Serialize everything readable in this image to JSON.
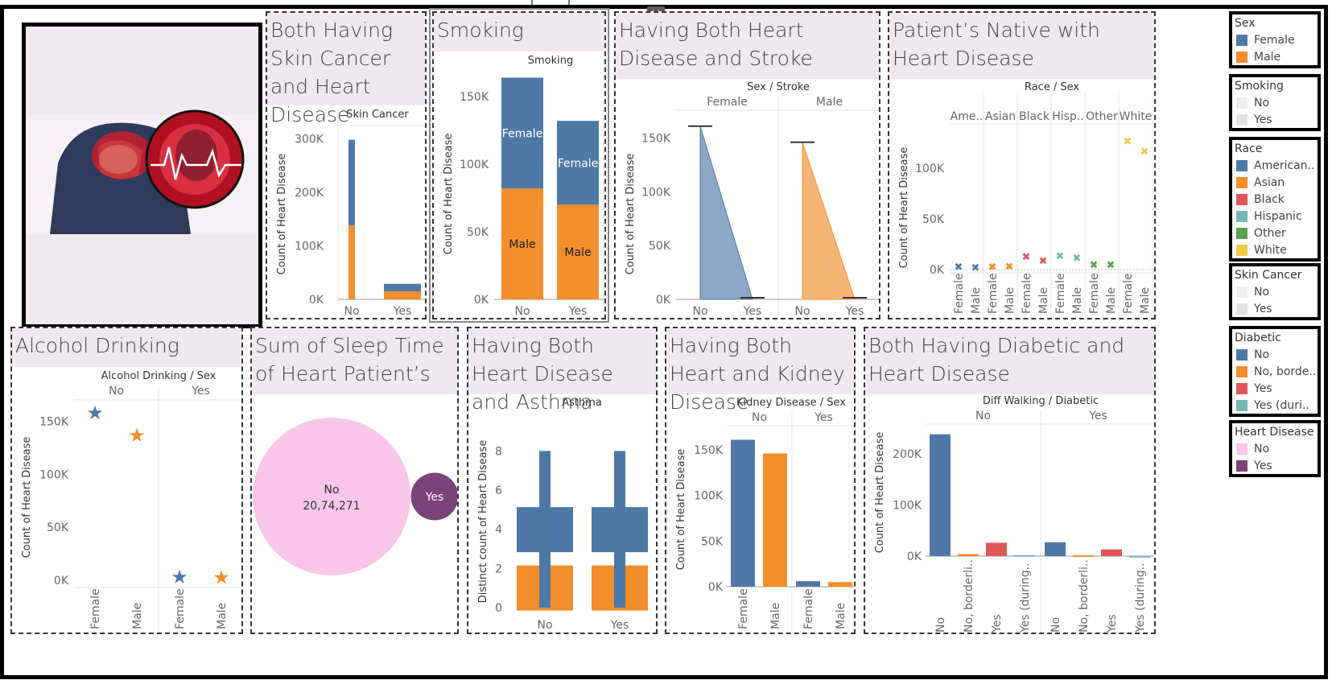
{
  "image_alt": "",
  "panels": {
    "skin": {
      "title": "Both Having Skin Cancer and Heart Disease"
    },
    "smoking": {
      "title": "Smoking"
    },
    "stroke": {
      "title": "Having Both Heart Disease and Stroke"
    },
    "race": {
      "title": "Patient’s Native with Heart Disease"
    },
    "alcohol": {
      "title": "Alcohol Drinking"
    },
    "sleep": {
      "title": "Sum of Sleep Time of Heart Patient’s"
    },
    "asthma": {
      "title": "Having Both Heart Disease and Asthma"
    },
    "kidney": {
      "title": "Having Both Heart and Kidney Disease"
    },
    "diabetic": {
      "title": "Both Having Diabetic and Heart Disease"
    }
  },
  "legends": [
    {
      "title": "Sex",
      "items": [
        {
          "label": "Female",
          "color": "#4e79a7"
        },
        {
          "label": "Male",
          "color": "#f28e2b"
        }
      ]
    },
    {
      "title": "Smoking",
      "items": [
        {
          "label": "No",
          "color": "#eeeeee"
        },
        {
          "label": "Yes",
          "color": "#e2e2e2"
        }
      ]
    },
    {
      "title": "Race",
      "items": [
        {
          "label": "American..",
          "color": "#4e79a7"
        },
        {
          "label": "Asian",
          "color": "#f28e2b"
        },
        {
          "label": "Black",
          "color": "#e15759"
        },
        {
          "label": "Hispanic",
          "color": "#76b7b2"
        },
        {
          "label": "Other",
          "color": "#59a14f"
        },
        {
          "label": "White",
          "color": "#edc948"
        }
      ]
    },
    {
      "title": "Skin Cancer",
      "items": [
        {
          "label": "No",
          "color": "#eeeeee"
        },
        {
          "label": "Yes",
          "color": "#e2e2e2"
        }
      ]
    },
    {
      "title": "Diabetic",
      "items": [
        {
          "label": "No",
          "color": "#4e79a7"
        },
        {
          "label": "No, borde..",
          "color": "#f28e2b"
        },
        {
          "label": "Yes",
          "color": "#e15759"
        },
        {
          "label": "Yes (duri..",
          "color": "#76b7b2"
        }
      ]
    },
    {
      "title": "Heart Disease",
      "items": [
        {
          "label": "No",
          "color": "#f7c6e8"
        },
        {
          "label": "Yes",
          "color": "#7b4379"
        }
      ]
    }
  ],
  "chart_data": [
    {
      "id": "skin",
      "type": "bar",
      "stacked": true,
      "header": "Skin Cancer",
      "ylabel": "Count of Heart Disease",
      "categories": [
        "No",
        "Yes"
      ],
      "ylim": [
        0,
        320000
      ],
      "yticks": [
        0,
        100000,
        200000,
        300000
      ],
      "ytick_labels": [
        "0K",
        "100K",
        "200K",
        "300K"
      ],
      "series": [
        {
          "name": "Male",
          "color": "#f28e2b",
          "values": [
            138000,
            15000
          ]
        },
        {
          "name": "Female",
          "color": "#4e79a7",
          "values": [
            160000,
            14000
          ]
        }
      ]
    },
    {
      "id": "smoking",
      "type": "bar",
      "stacked": true,
      "header": "Smoking",
      "ylabel": "Count of Heart Disease",
      "categories": [
        "No",
        "Yes"
      ],
      "ylim": [
        0,
        172000
      ],
      "yticks": [
        0,
        50000,
        100000,
        150000
      ],
      "ytick_labels": [
        "0K",
        "50K",
        "100K",
        "150K"
      ],
      "series": [
        {
          "name": "Male",
          "color": "#f28e2b",
          "values": [
            82000,
            70000
          ],
          "labels": [
            "Male",
            "Male"
          ]
        },
        {
          "name": "Female",
          "color": "#4e79a7",
          "values": [
            82000,
            62000
          ],
          "labels": [
            "Female",
            "Female"
          ]
        }
      ]
    },
    {
      "id": "stroke",
      "type": "area",
      "header": "Sex / Stroke",
      "groups": [
        "Female",
        "Male"
      ],
      "ylabel": "Count of Heart Disease",
      "categories": [
        "No",
        "Yes"
      ],
      "ylim": [
        0,
        172000
      ],
      "yticks": [
        0,
        50000,
        100000,
        150000
      ],
      "ytick_labels": [
        "0K",
        "50K",
        "100K",
        "150K"
      ],
      "series": [
        {
          "name": "Female",
          "color": "#4e79a7",
          "values": [
            161000,
            0
          ]
        },
        {
          "name": "Male",
          "color": "#f28e2b",
          "values": [
            146000,
            0
          ]
        }
      ]
    },
    {
      "id": "race",
      "type": "scatter",
      "header": "Race / Sex",
      "ylabel": "Count of Heart Disease",
      "groups": [
        "Ame..",
        "Asian",
        "Black",
        "Hisp..",
        "Other",
        "White"
      ],
      "group_colors": [
        "#4e79a7",
        "#f28e2b",
        "#e15759",
        "#76b7b2",
        "#59a14f",
        "#edc948"
      ],
      "categories": [
        "Female",
        "Male"
      ],
      "ylim": [
        0,
        142000
      ],
      "yticks": [
        0,
        50000,
        100000
      ],
      "ytick_labels": [
        "0K",
        "50K",
        "100K"
      ],
      "values": [
        [
          3000,
          2500
        ],
        [
          3000,
          3500
        ],
        [
          13000,
          9000
        ],
        [
          14000,
          12000
        ],
        [
          5000,
          5000
        ],
        [
          127000,
          117000
        ]
      ]
    },
    {
      "id": "alcohol",
      "type": "scatter",
      "header": "Alcohol Drinking / Sex",
      "groups": [
        "No",
        "Yes"
      ],
      "ylabel": "Count of Heart Disease",
      "categories": [
        "Female",
        "Male"
      ],
      "ylim": [
        0,
        168000
      ],
      "yticks": [
        0,
        50000,
        100000,
        150000
      ],
      "ytick_labels": [
        "0K",
        "50K",
        "100K",
        "150K"
      ],
      "values": [
        [
          158000,
          137000
        ],
        [
          3000,
          2500
        ]
      ],
      "colors": [
        "#4e79a7",
        "#f28e2b"
      ]
    },
    {
      "id": "sleep",
      "type": "pie",
      "categories": [
        "No",
        "Yes"
      ],
      "values": [
        2074271,
        150000
      ],
      "value_labels": [
        "20,74,271",
        ""
      ],
      "colors": [
        "#f7c6e8",
        "#7b4379"
      ]
    },
    {
      "id": "asthma",
      "type": "bar",
      "header": "Asthma",
      "ylabel": "Distinct count of Heart Disease",
      "categories": [
        "No",
        "Yes"
      ],
      "ylim": [
        0,
        9
      ],
      "yticks": [
        0,
        2,
        4,
        6,
        8
      ],
      "ytick_labels": [
        "0",
        "2",
        "4",
        "6",
        "8"
      ],
      "series": [
        {
          "name": "Male",
          "color": "#f28e2b",
          "values": [
            2,
            2
          ]
        },
        {
          "name": "Female",
          "color": "#4e79a7",
          "values": [
            8,
            8
          ]
        }
      ]
    },
    {
      "id": "kidney",
      "type": "bar",
      "header": "Kidney Disease / Sex",
      "groups": [
        "No",
        "Yes"
      ],
      "ylabel": "Count of Heart Disease",
      "categories": [
        "Female",
        "Male"
      ],
      "ylim": [
        0,
        172000
      ],
      "yticks": [
        0,
        50000,
        100000,
        150000
      ],
      "ytick_labels": [
        "0K",
        "50K",
        "100K",
        "150K"
      ],
      "values": [
        [
          161000,
          146000
        ],
        [
          6000,
          5000
        ]
      ],
      "colors": [
        "#4e79a7",
        "#f28e2b"
      ]
    },
    {
      "id": "diabetic",
      "type": "bar",
      "header": "Diff Walking / Diabetic",
      "groups": [
        "No",
        "Yes"
      ],
      "ylabel": "Count of Heart Disease",
      "categories": [
        "No",
        "No, borderli..",
        "Yes",
        "Yes (during.."
      ],
      "ylim": [
        0,
        250000
      ],
      "yticks": [
        0,
        100000,
        200000
      ],
      "ytick_labels": [
        "0K",
        "100K",
        "200K"
      ],
      "values": [
        [
          238000,
          4000,
          26000,
          2000
        ],
        [
          27000,
          1500,
          13000,
          300
        ]
      ],
      "colors": [
        "#4e79a7",
        "#f28e2b",
        "#e15759",
        "#76b7b2"
      ]
    }
  ]
}
